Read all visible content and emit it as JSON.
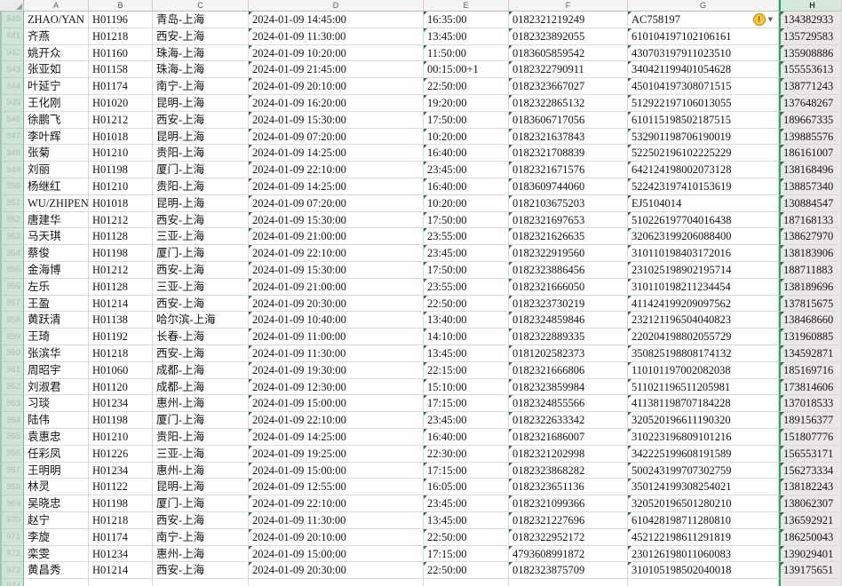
{
  "sheet": {
    "column_letters": [
      "A",
      "B",
      "C",
      "D",
      "E",
      "F",
      "G",
      "H"
    ],
    "selected_column": "H",
    "first_row_number": 940
  },
  "colors": {
    "selection_green": "#27a35e",
    "row_header_bg": "#cde4d7",
    "selected_column_tint": "#ebe7e6",
    "grid_line": "#dadada",
    "warning_yellow": "#f3c53d",
    "error_triangle_green": "#217346"
  },
  "icons": {
    "warning_glyph": "!",
    "dropdown_glyph": "▼"
  },
  "warning_cell": {
    "row": 940,
    "column": "G"
  },
  "rows": [
    {
      "num": 940,
      "name": "ZHAO/YAN",
      "code": "H01196",
      "route": "青岛-上海",
      "depart": "2024-01-09 14:45:00",
      "arrive": "16:35:00",
      "ticket": "0182321219249",
      "idnum": "AC758197",
      "phone": "134382933",
      "warning": true
    },
    {
      "num": 941,
      "name": "齐燕",
      "code": "H01218",
      "route": "西安-上海",
      "depart": "2024-01-09 11:30:00",
      "arrive": "13:45:00",
      "ticket": "0182323892055",
      "idnum": "610104197102106161",
      "phone": "135729583"
    },
    {
      "num": 942,
      "name": "姚开众",
      "code": "H01160",
      "route": "珠海-上海",
      "depart": "2024-01-09 10:20:00",
      "arrive": "11:50:00",
      "ticket": "0183605859542",
      "idnum": "430703197911023510",
      "phone": "135908886"
    },
    {
      "num": 943,
      "name": "张亚如",
      "code": "H01158",
      "route": "珠海-上海",
      "depart": "2024-01-09 21:45:00",
      "arrive": "00:15:00+1",
      "ticket": "0182322790911",
      "idnum": "340421199401054628",
      "phone": "155553613"
    },
    {
      "num": 944,
      "name": "叶延宁",
      "code": "H01174",
      "route": "南宁-上海",
      "depart": "2024-01-09 20:10:00",
      "arrive": "22:50:00",
      "ticket": "0182323667027",
      "idnum": "450104197308071515",
      "phone": "138771243"
    },
    {
      "num": 945,
      "name": "王化刚",
      "code": "H01020",
      "route": "昆明-上海",
      "depart": "2024-01-09 16:20:00",
      "arrive": "19:20:00",
      "ticket": "0182322865132",
      "idnum": "512922197106013055",
      "phone": "137648267"
    },
    {
      "num": 946,
      "name": "徐鹏飞",
      "code": "H01212",
      "route": "西安-上海",
      "depart": "2024-01-09 15:30:00",
      "arrive": "17:50:00",
      "ticket": "0183606717056",
      "idnum": "610115198502187515",
      "phone": "189667335"
    },
    {
      "num": 947,
      "name": "李叶辉",
      "code": "H01018",
      "route": "昆明-上海",
      "depart": "2024-01-09 07:20:00",
      "arrive": "10:20:00",
      "ticket": "0182321637843",
      "idnum": "532901198706190019",
      "phone": "139885576"
    },
    {
      "num": 948,
      "name": "张菊",
      "code": "H01210",
      "route": "贵阳-上海",
      "depart": "2024-01-09 14:25:00",
      "arrive": "16:40:00",
      "ticket": "0182321708839",
      "idnum": "522502196102225229",
      "phone": "186161007"
    },
    {
      "num": 949,
      "name": "刘丽",
      "code": "H01198",
      "route": "厦门-上海",
      "depart": "2024-01-09 22:10:00",
      "arrive": "23:45:00",
      "ticket": "0182321671576",
      "idnum": "642124198002073128",
      "phone": "138168496"
    },
    {
      "num": 950,
      "name": "杨继红",
      "code": "H01210",
      "route": "贵阳-上海",
      "depart": "2024-01-09 14:25:00",
      "arrive": "16:40:00",
      "ticket": "0183609744060",
      "idnum": "522423197410153619",
      "phone": "138857340"
    },
    {
      "num": 951,
      "name": "WU/ZHIPENG",
      "code": "H01018",
      "route": "昆明-上海",
      "depart": "2024-01-09 07:20:00",
      "arrive": "10:20:00",
      "ticket": "0182103675203",
      "idnum": "EJ5104014",
      "phone": "130884547"
    },
    {
      "num": 952,
      "name": "唐建华",
      "code": "H01212",
      "route": "西安-上海",
      "depart": "2024-01-09 15:30:00",
      "arrive": "17:50:00",
      "ticket": "0182321697653",
      "idnum": "510226197704016438",
      "phone": "187168133"
    },
    {
      "num": 953,
      "name": "马天琪",
      "code": "H01128",
      "route": "三亚-上海",
      "depart": "2024-01-09 21:00:00",
      "arrive": "23:55:00",
      "ticket": "0182321626635",
      "idnum": "320623199206088400",
      "phone": "138627970"
    },
    {
      "num": 954,
      "name": "蔡俊",
      "code": "H01198",
      "route": "厦门-上海",
      "depart": "2024-01-09 22:10:00",
      "arrive": "23:45:00",
      "ticket": "0182322919560",
      "idnum": "310110198403172016",
      "phone": "138183906"
    },
    {
      "num": 955,
      "name": "金海博",
      "code": "H01212",
      "route": "西安-上海",
      "depart": "2024-01-09 15:30:00",
      "arrive": "17:50:00",
      "ticket": "0182323886456",
      "idnum": "231025198902195714",
      "phone": "188711883"
    },
    {
      "num": 956,
      "name": "左乐",
      "code": "H01128",
      "route": "三亚-上海",
      "depart": "2024-01-09 21:00:00",
      "arrive": "23:55:00",
      "ticket": "0182321666050",
      "idnum": "310110198211234454",
      "phone": "138189696"
    },
    {
      "num": 957,
      "name": "王盈",
      "code": "H01214",
      "route": "西安-上海",
      "depart": "2024-01-09 20:30:00",
      "arrive": "22:50:00",
      "ticket": "0182323730219",
      "idnum": "411424199209097562",
      "phone": "137815675"
    },
    {
      "num": 958,
      "name": "黄跃清",
      "code": "H01138",
      "route": "哈尔滨-上海",
      "depart": "2024-01-09 10:40:00",
      "arrive": "13:40:00",
      "ticket": "0182324859846",
      "idnum": "232121196504040823",
      "phone": "138468660"
    },
    {
      "num": 959,
      "name": "王琦",
      "code": "H01192",
      "route": "长春-上海",
      "depart": "2024-01-09 11:00:00",
      "arrive": "14:10:00",
      "ticket": "0182322889335",
      "idnum": "220204198802055729",
      "phone": "131960885"
    },
    {
      "num": 960,
      "name": "张滨华",
      "code": "H01218",
      "route": "西安-上海",
      "depart": "2024-01-09 11:30:00",
      "arrive": "13:45:00",
      "ticket": "0181202582373",
      "idnum": "350825198808174132",
      "phone": "134592871"
    },
    {
      "num": 961,
      "name": "周昭宇",
      "code": "H01060",
      "route": "成都-上海",
      "depart": "2024-01-09 19:30:00",
      "arrive": "22:15:00",
      "ticket": "0182321666806",
      "idnum": "110101197002082038",
      "phone": "185169716"
    },
    {
      "num": 962,
      "name": "刘淑君",
      "code": "H01120",
      "route": "成都-上海",
      "depart": "2024-01-09 12:30:00",
      "arrive": "15:10:00",
      "ticket": "0182323859984",
      "idnum": "511021196511205981",
      "phone": "173814606"
    },
    {
      "num": 963,
      "name": "习琰",
      "code": "H01234",
      "route": "惠州-上海",
      "depart": "2024-01-09 15:00:00",
      "arrive": "17:15:00",
      "ticket": "0182324855566",
      "idnum": "411381198707184228",
      "phone": "137018533"
    },
    {
      "num": 964,
      "name": "陆伟",
      "code": "H01198",
      "route": "厦门-上海",
      "depart": "2024-01-09 22:10:00",
      "arrive": "23:45:00",
      "ticket": "0182322633342",
      "idnum": "320520196611190320",
      "phone": "189156377"
    },
    {
      "num": 965,
      "name": "袁惠忠",
      "code": "H01210",
      "route": "贵阳-上海",
      "depart": "2024-01-09 14:25:00",
      "arrive": "16:40:00",
      "ticket": "0182321686007",
      "idnum": "310223196809101216",
      "phone": "151807776"
    },
    {
      "num": 966,
      "name": "任彩凤",
      "code": "H01226",
      "route": "三亚-上海",
      "depart": "2024-01-09 19:25:00",
      "arrive": "22:30:00",
      "ticket": "0182321202998",
      "idnum": "342225199608191589",
      "phone": "156553171"
    },
    {
      "num": 967,
      "name": "王明明",
      "code": "H01234",
      "route": "惠州-上海",
      "depart": "2024-01-09 15:00:00",
      "arrive": "17:15:00",
      "ticket": "0182323868282",
      "idnum": "500243199707302759",
      "phone": "156273334"
    },
    {
      "num": 968,
      "name": "林灵",
      "code": "H01122",
      "route": "昆明-上海",
      "depart": "2024-01-09 12:55:00",
      "arrive": "16:05:00",
      "ticket": "0182323651136",
      "idnum": "350124199308254021",
      "phone": "138182243"
    },
    {
      "num": 969,
      "name": "吴晓忠",
      "code": "H01198",
      "route": "厦门-上海",
      "depart": "2024-01-09 22:10:00",
      "arrive": "23:45:00",
      "ticket": "0182321099366",
      "idnum": "320520196501280210",
      "phone": "138062307"
    },
    {
      "num": 970,
      "name": "赵宁",
      "code": "H01218",
      "route": "西安-上海",
      "depart": "2024-01-09 11:30:00",
      "arrive": "13:45:00",
      "ticket": "0182321227696",
      "idnum": "610428198711280810",
      "phone": "136592921"
    },
    {
      "num": 971,
      "name": "李旋",
      "code": "H01174",
      "route": "南宁-上海",
      "depart": "2024-01-09 20:10:00",
      "arrive": "22:50:00",
      "ticket": "0182322952172",
      "idnum": "452122198611291819",
      "phone": "186250043"
    },
    {
      "num": 972,
      "name": "栾雯",
      "code": "H01234",
      "route": "惠州-上海",
      "depart": "2024-01-09 15:00:00",
      "arrive": "17:15:00",
      "ticket": "4793608991872",
      "idnum": "230126198011060083",
      "phone": "139029401"
    },
    {
      "num": 973,
      "name": "黄昌秀",
      "code": "H01214",
      "route": "西安-上海",
      "depart": "2024-01-09 20:30:00",
      "arrive": "22:50:00",
      "ticket": "0182323875709",
      "idnum": "310105198502040018",
      "phone": "139175651"
    },
    {
      "num": 974,
      "name": "",
      "code": "",
      "route": "",
      "depart": "",
      "arrive": "",
      "ticket": "",
      "idnum": "",
      "phone": ""
    }
  ]
}
